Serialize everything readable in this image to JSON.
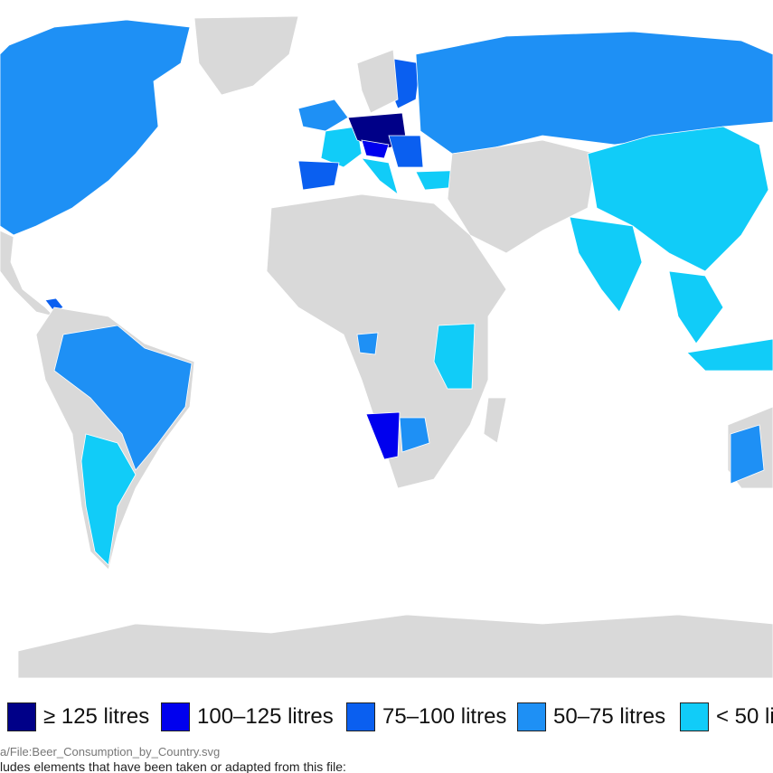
{
  "legend": {
    "items": [
      {
        "label": "≥ 125 litres",
        "color": "#000088"
      },
      {
        "label": "100–125 litres",
        "color": "#0000ee"
      },
      {
        "label": "75–100 litres",
        "color": "#0a5ff0"
      },
      {
        "label": "50–75 litres",
        "color": "#1e90f5"
      },
      {
        "label": "< 50 li",
        "color": "#11ccf8"
      }
    ]
  },
  "caption": {
    "source": "a/File:Beer_Consumption_by_Country.svg",
    "note": "ludes elements that have been taken or adapted from this file:"
  }
}
